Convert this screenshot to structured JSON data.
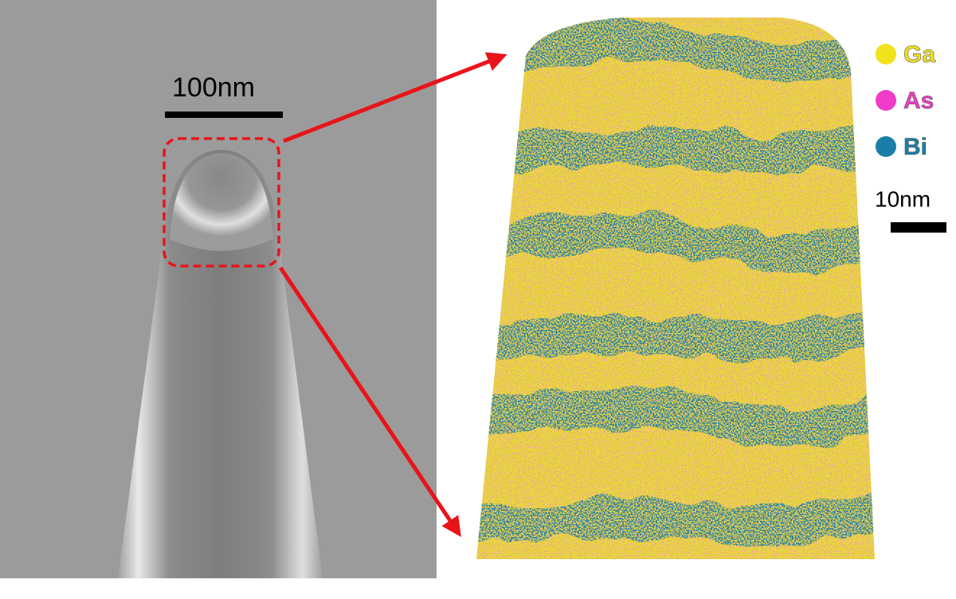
{
  "sem_panel": {
    "scale_bar_label": "100nm"
  },
  "apt_panel": {
    "legend": [
      {
        "label": "Ga",
        "color": "#f2e21c"
      },
      {
        "label": "As",
        "color": "#f03cc8"
      },
      {
        "label": "Bi",
        "color": "#1a7fa8"
      }
    ],
    "scale_bar_label": "10nm"
  }
}
